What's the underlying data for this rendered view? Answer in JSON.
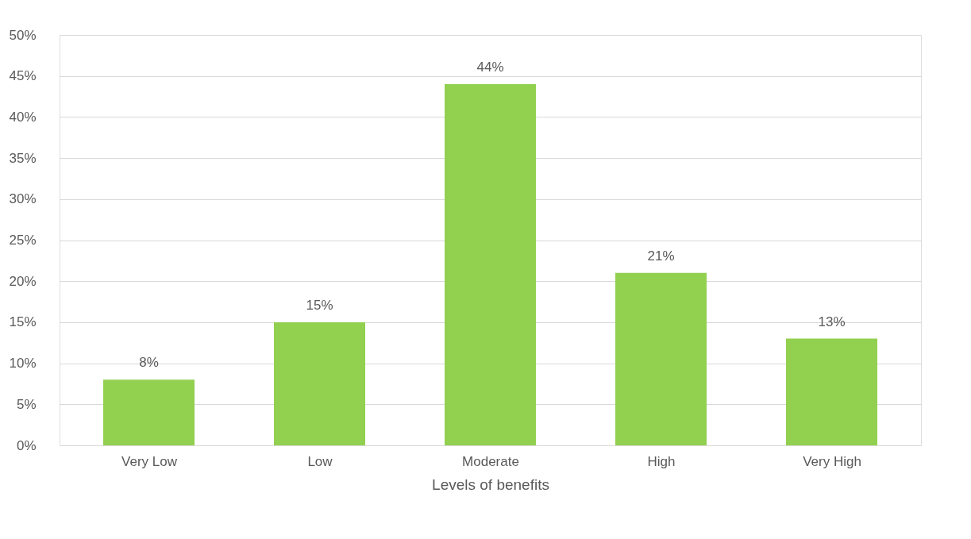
{
  "chart_data": {
    "type": "bar",
    "xlabel": "Levels of benefits",
    "categories": [
      "Very Low",
      "Low",
      "Moderate",
      "High",
      "Very High"
    ],
    "values": [
      8,
      15,
      44,
      21,
      13
    ],
    "value_labels": [
      "8%",
      "15%",
      "44%",
      "21%",
      "13%"
    ],
    "color": "#92d050",
    "ylim": [
      0,
      50
    ],
    "yticks": [
      {
        "value": 0,
        "label": "0%"
      },
      {
        "value": 5,
        "label": "5%"
      },
      {
        "value": 10,
        "label": "10%"
      },
      {
        "value": 15,
        "label": "15%"
      },
      {
        "value": 20,
        "label": "20%"
      },
      {
        "value": 25,
        "label": "25%"
      },
      {
        "value": 30,
        "label": "30%"
      },
      {
        "value": 35,
        "label": "35%"
      },
      {
        "value": 40,
        "label": "40%"
      },
      {
        "value": 45,
        "label": "45%"
      },
      {
        "value": 50,
        "label": "50%"
      }
    ],
    "grid": "y"
  }
}
